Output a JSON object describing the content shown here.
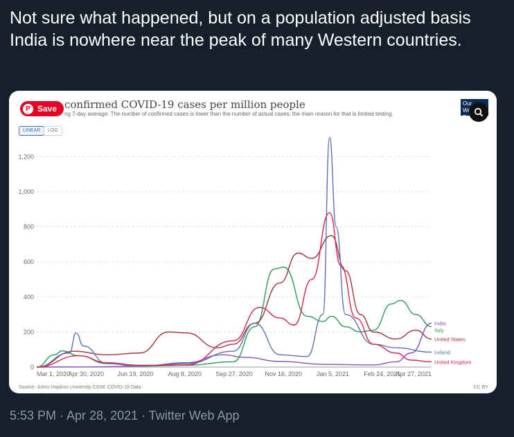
{
  "tweet": {
    "text": "Not sure what happened, but on a population adjusted basis India is nowhere near the peak of many Western countries.",
    "meta": "5:53 PM · Apr 28, 2021 · Twitter Web App"
  },
  "overlay": {
    "save_label": "Save",
    "pin_glyph": "P",
    "logo_text": "Our World in Data"
  },
  "controls": {
    "linear_label": "LINEAR",
    "log_label": "LOG"
  },
  "chart_data": {
    "type": "line",
    "title": "confirmed COVID-19 cases per million people",
    "subtitle": "ng 7-day average. The number of confirmed cases is lower than the number of actual cases; the main reason for that is limited testing.",
    "source": "Source: Johns Hopkins University CSSE COVID-19 Data",
    "license": "CC BY",
    "x_ticks": [
      "Mar 1, 2020",
      "Apr 30, 2020",
      "Jun 19, 2020",
      "Aug 8, 2020",
      "Sep 27, 2020",
      "Nov 16, 2020",
      "Jan 5, 2021",
      "Feb 24, 2021",
      "Apr 27, 2021"
    ],
    "y_ticks": [
      0,
      200,
      400,
      600,
      800,
      1000,
      1200
    ],
    "y_tick_labels": [
      "0",
      "200",
      "400",
      "600",
      "800",
      "1,000",
      "1,200"
    ],
    "ylim": [
      0,
      1300
    ],
    "x_range": [
      "2020-03-01",
      "2021-04-27"
    ],
    "grid": true,
    "legend": "right",
    "series": [
      {
        "name": "India",
        "color": "#8a4fb6",
        "points": [
          [
            "2020-03-01",
            0
          ],
          [
            "2020-05-01",
            1
          ],
          [
            "2020-06-19",
            5
          ],
          [
            "2020-08-08",
            25
          ],
          [
            "2020-09-16",
            70
          ],
          [
            "2020-10-10",
            55
          ],
          [
            "2020-11-16",
            32
          ],
          [
            "2021-01-05",
            15
          ],
          [
            "2021-02-24",
            12
          ],
          [
            "2021-03-20",
            30
          ],
          [
            "2021-04-05",
            80
          ],
          [
            "2021-04-27",
            250
          ]
        ]
      },
      {
        "name": "Italy",
        "color": "#2a9a52",
        "points": [
          [
            "2020-03-01",
            0
          ],
          [
            "2020-03-20",
            70
          ],
          [
            "2020-03-28",
            92
          ],
          [
            "2020-04-15",
            65
          ],
          [
            "2020-05-15",
            20
          ],
          [
            "2020-06-19",
            5
          ],
          [
            "2020-08-08",
            10
          ],
          [
            "2020-09-27",
            30
          ],
          [
            "2020-10-20",
            230
          ],
          [
            "2020-11-10",
            560
          ],
          [
            "2020-11-20",
            570
          ],
          [
            "2020-12-15",
            290
          ],
          [
            "2021-01-01",
            260
          ],
          [
            "2021-01-10",
            290
          ],
          [
            "2021-01-25",
            230
          ],
          [
            "2021-02-10",
            200
          ],
          [
            "2021-02-24",
            210
          ],
          [
            "2021-03-15",
            360
          ],
          [
            "2021-03-25",
            380
          ],
          [
            "2021-04-10",
            300
          ],
          [
            "2021-04-27",
            230
          ]
        ]
      },
      {
        "name": "United States",
        "color": "#a0343b",
        "points": [
          [
            "2020-03-01",
            0
          ],
          [
            "2020-04-10",
            90
          ],
          [
            "2020-05-15",
            70
          ],
          [
            "2020-06-19",
            80
          ],
          [
            "2020-07-20",
            200
          ],
          [
            "2020-08-08",
            195
          ],
          [
            "2020-09-10",
            110
          ],
          [
            "2020-09-27",
            130
          ],
          [
            "2020-10-20",
            250
          ],
          [
            "2020-11-16",
            480
          ],
          [
            "2020-12-05",
            650
          ],
          [
            "2020-12-20",
            620
          ],
          [
            "2021-01-10",
            750
          ],
          [
            "2021-01-25",
            550
          ],
          [
            "2021-02-10",
            300
          ],
          [
            "2021-02-24",
            200
          ],
          [
            "2021-03-20",
            160
          ],
          [
            "2021-04-10",
            210
          ],
          [
            "2021-04-27",
            160
          ]
        ]
      },
      {
        "name": "Ireland",
        "color": "#5b73b5",
        "points": [
          [
            "2020-03-01",
            0
          ],
          [
            "2020-04-05",
            80
          ],
          [
            "2020-04-12",
            195
          ],
          [
            "2020-04-20",
            120
          ],
          [
            "2020-05-15",
            20
          ],
          [
            "2020-06-19",
            5
          ],
          [
            "2020-08-08",
            20
          ],
          [
            "2020-09-27",
            90
          ],
          [
            "2020-10-20",
            250
          ],
          [
            "2020-11-16",
            70
          ],
          [
            "2020-12-15",
            60
          ],
          [
            "2021-01-01",
            300
          ],
          [
            "2021-01-08",
            1310
          ],
          [
            "2021-01-15",
            800
          ],
          [
            "2021-01-25",
            300
          ],
          [
            "2021-02-24",
            130
          ],
          [
            "2021-03-20",
            110
          ],
          [
            "2021-04-27",
            85
          ]
        ]
      },
      {
        "name": "United Kingdom",
        "color": "#d4244d",
        "points": [
          [
            "2020-03-01",
            0
          ],
          [
            "2020-04-15",
            65
          ],
          [
            "2020-05-15",
            25
          ],
          [
            "2020-06-19",
            10
          ],
          [
            "2020-08-08",
            12
          ],
          [
            "2020-09-27",
            150
          ],
          [
            "2020-10-25",
            340
          ],
          [
            "2020-11-16",
            280
          ],
          [
            "2020-12-01",
            240
          ],
          [
            "2020-12-20",
            500
          ],
          [
            "2021-01-08",
            880
          ],
          [
            "2021-01-20",
            580
          ],
          [
            "2021-02-05",
            280
          ],
          [
            "2021-02-24",
            130
          ],
          [
            "2021-03-20",
            80
          ],
          [
            "2021-04-05",
            40
          ],
          [
            "2021-04-27",
            30
          ]
        ]
      }
    ]
  }
}
